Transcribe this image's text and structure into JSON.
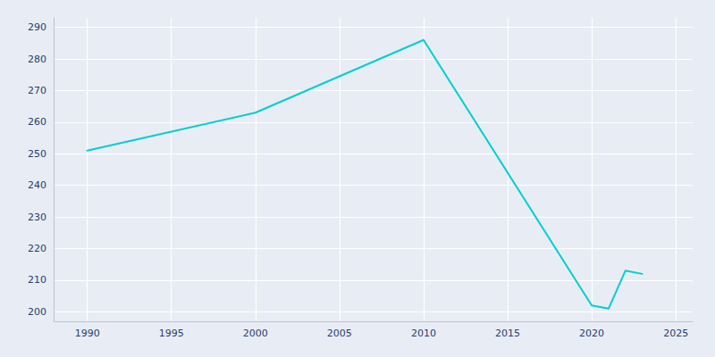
{
  "chart_data": {
    "type": "line",
    "x": [
      1990,
      2000,
      2010,
      2020,
      2021,
      2022,
      2023
    ],
    "values": [
      251,
      263,
      286,
      202,
      201,
      213,
      212
    ],
    "color": "#00CED1",
    "xlim": [
      1988,
      2026
    ],
    "ylim": [
      197,
      293
    ],
    "xticks": [
      1990,
      1995,
      2000,
      2005,
      2010,
      2015,
      2020,
      2025
    ],
    "yticks": [
      200,
      210,
      220,
      230,
      240,
      250,
      260,
      270,
      280,
      290
    ],
    "grid": true
  }
}
